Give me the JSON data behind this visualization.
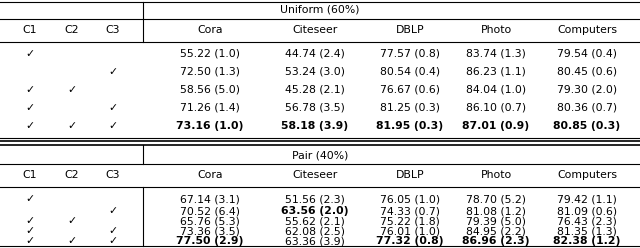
{
  "title1": "Uniform (60%)",
  "title2": "Pair (40%)",
  "col_headers": [
    "C1",
    "C2",
    "C3",
    "Cora",
    "Citeseer",
    "DBLP",
    "Photo",
    "Computers"
  ],
  "section1_rows": [
    {
      "c1": true,
      "c2": false,
      "c3": false,
      "vals": [
        "55.22 (1.0)",
        "44.74 (2.4)",
        "77.57 (0.8)",
        "83.74 (1.3)",
        "79.54 (0.4)"
      ],
      "bold": false,
      "bold_cols": []
    },
    {
      "c1": false,
      "c2": false,
      "c3": true,
      "vals": [
        "72.50 (1.3)",
        "53.24 (3.0)",
        "80.54 (0.4)",
        "86.23 (1.1)",
        "80.45 (0.6)"
      ],
      "bold": false,
      "bold_cols": []
    },
    {
      "c1": true,
      "c2": true,
      "c3": false,
      "vals": [
        "58.56 (5.0)",
        "45.28 (2.1)",
        "76.67 (0.6)",
        "84.04 (1.0)",
        "79.30 (2.0)"
      ],
      "bold": false,
      "bold_cols": []
    },
    {
      "c1": true,
      "c2": false,
      "c3": true,
      "vals": [
        "71.26 (1.4)",
        "56.78 (3.5)",
        "81.25 (0.3)",
        "86.10 (0.7)",
        "80.36 (0.7)"
      ],
      "bold": false,
      "bold_cols": []
    },
    {
      "c1": true,
      "c2": true,
      "c3": true,
      "vals": [
        "73.16 (1.0)",
        "58.18 (3.9)",
        "81.95 (0.3)",
        "87.01 (0.9)",
        "80.85 (0.3)"
      ],
      "bold": true,
      "bold_cols": [
        0,
        1,
        2,
        3,
        4
      ]
    }
  ],
  "section2_rows": [
    {
      "c1": true,
      "c2": false,
      "c3": false,
      "vals": [
        "67.14 (3.1)",
        "51.56 (2.3)",
        "76.05 (1.0)",
        "78.70 (5.2)",
        "79.42 (1.1)"
      ],
      "bold": false,
      "bold_cols": []
    },
    {
      "c1": false,
      "c2": false,
      "c3": true,
      "vals": [
        "70.52 (6.4)",
        "63.56 (2.0)",
        "74.33 (0.7)",
        "81.08 (1.2)",
        "81.09 (0.6)"
      ],
      "bold": false,
      "bold_cols": [
        1
      ]
    },
    {
      "c1": true,
      "c2": true,
      "c3": false,
      "vals": [
        "65.76 (5.3)",
        "55.62 (2.1)",
        "75.22 (1.8)",
        "79.39 (5.0)",
        "76.43 (2.3)"
      ],
      "bold": false,
      "bold_cols": []
    },
    {
      "c1": true,
      "c2": false,
      "c3": true,
      "vals": [
        "73.36 (3.5)",
        "62.08 (2.5)",
        "76.01 (1.0)",
        "84.95 (2.2)",
        "81.35 (1.3)"
      ],
      "bold": false,
      "bold_cols": []
    },
    {
      "c1": true,
      "c2": true,
      "c3": true,
      "vals": [
        "77.50 (2.9)",
        "63.36 (3.9)",
        "77.32 (0.8)",
        "86.96 (2.3)",
        "82.38 (1.2)"
      ],
      "bold": true,
      "bold_cols": [
        0,
        2,
        3,
        4
      ]
    }
  ],
  "checkmark": "✓",
  "font_size": 7.8,
  "fig_width": 6.4,
  "fig_height": 2.48,
  "dpi": 100
}
